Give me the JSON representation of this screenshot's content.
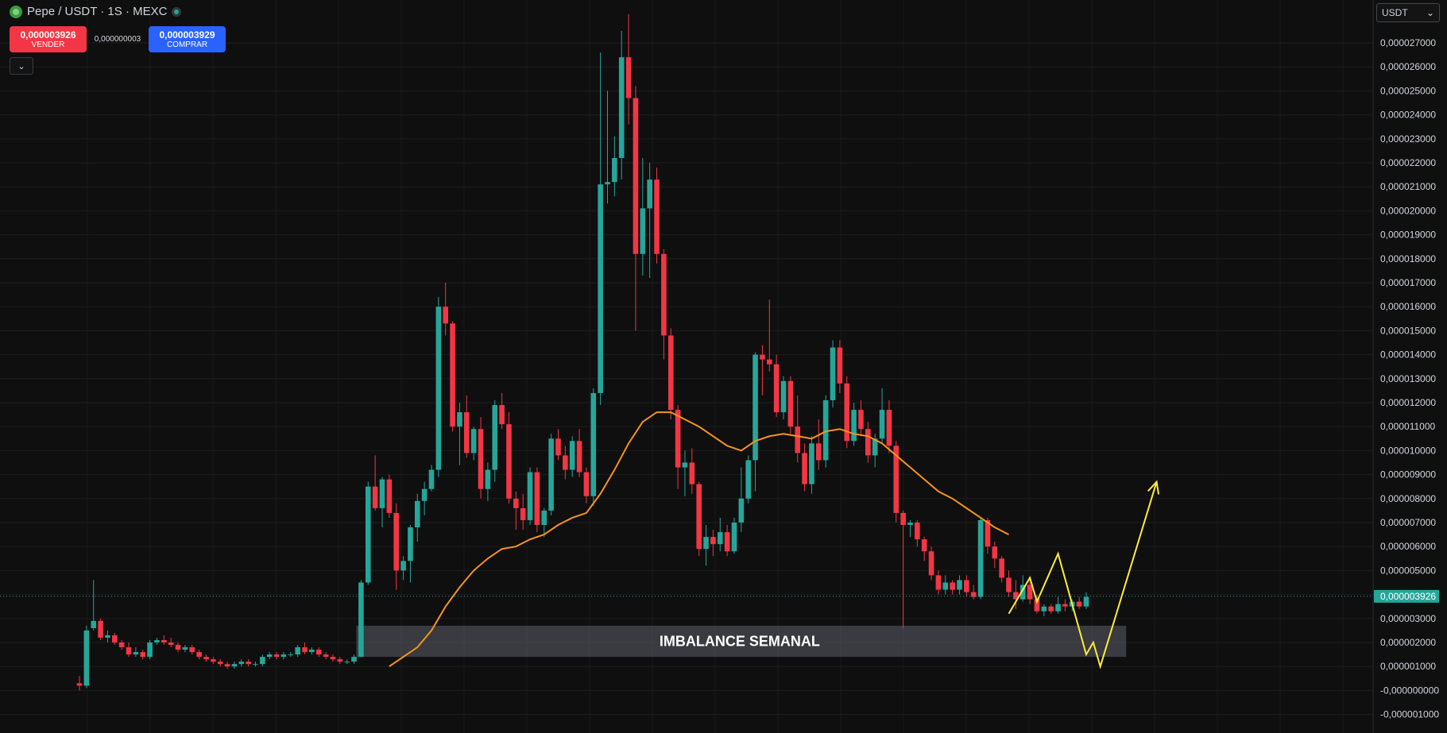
{
  "header": {
    "symbol": "Pepe / USDT · 1S · MEXC"
  },
  "trade": {
    "sell_price": "0,000003926",
    "sell_label": "VENDER",
    "spread": "0,000000003",
    "buy_price": "0,000003929",
    "buy_label": "COMPRAR"
  },
  "currency": "USDT",
  "icons": {
    "coin": "pepe-coin-icon",
    "status": "market-open-dot-icon",
    "collapse": "chevron-down-icon",
    "currency_caret": "caret-down-icon"
  },
  "colors": {
    "up": "#26a69a",
    "down": "#f23645",
    "ma": "#f7931e",
    "projection": "#ffeb3b",
    "background": "#0f0f0f",
    "zone": "#5d606b"
  },
  "chart_data": {
    "type": "candlestick",
    "ylim": [
      -1e-06,
      2.75e-05
    ],
    "y_ticks": [
      "0,000027000",
      "0,000026000",
      "0,000025000",
      "0,000024000",
      "0,000023000",
      "0,000022000",
      "0,000021000",
      "0,000020000",
      "0,000019000",
      "0,000018000",
      "0,000017000",
      "0,000016000",
      "0,000015000",
      "0,000014000",
      "0,000013000",
      "0,000012000",
      "0,000011000",
      "0,000010000",
      "0,000009000",
      "0,000008000",
      "0,000007000",
      "0,000006000",
      "0,000005000",
      "0,000004000",
      "0,000003000",
      "0,000002000",
      "0,000001000",
      "-0,000000000",
      "-0,000001000"
    ],
    "y_tick_values": [
      27,
      26,
      25,
      24,
      23,
      22,
      21,
      20,
      19,
      18,
      17,
      16,
      15,
      14,
      13,
      12,
      11,
      10,
      9,
      8,
      7,
      6,
      5,
      4,
      3,
      2,
      1,
      0,
      -1
    ],
    "y_tick_unit": 1e-06,
    "last_price": {
      "label": "0,000003926",
      "value": 3.926e-06
    },
    "candles_unit": 1e-06,
    "candles": [
      [
        0.3,
        0.6,
        0.0,
        0.2
      ],
      [
        0.2,
        2.7,
        0.1,
        2.5
      ],
      [
        2.6,
        4.6,
        2.5,
        2.9
      ],
      [
        2.9,
        3.0,
        2.1,
        2.2
      ],
      [
        2.2,
        2.5,
        2.0,
        2.3
      ],
      [
        2.3,
        2.4,
        1.9,
        2.0
      ],
      [
        2.0,
        2.1,
        1.7,
        1.8
      ],
      [
        1.8,
        2.0,
        1.4,
        1.5
      ],
      [
        1.5,
        1.8,
        1.4,
        1.6
      ],
      [
        1.6,
        1.7,
        1.3,
        1.4
      ],
      [
        1.4,
        2.1,
        1.3,
        2.0
      ],
      [
        2.0,
        2.2,
        1.9,
        2.1
      ],
      [
        2.1,
        2.3,
        1.9,
        2.0
      ],
      [
        2.0,
        2.2,
        1.8,
        1.9
      ],
      [
        1.9,
        2.0,
        1.6,
        1.7
      ],
      [
        1.7,
        1.9,
        1.6,
        1.8
      ],
      [
        1.8,
        1.9,
        1.5,
        1.6
      ],
      [
        1.6,
        1.7,
        1.3,
        1.4
      ],
      [
        1.4,
        1.5,
        1.2,
        1.3
      ],
      [
        1.3,
        1.4,
        1.1,
        1.2
      ],
      [
        1.2,
        1.3,
        1.0,
        1.1
      ],
      [
        1.1,
        1.2,
        0.9,
        1.0
      ],
      [
        1.0,
        1.2,
        0.9,
        1.1
      ],
      [
        1.1,
        1.3,
        1.0,
        1.2
      ],
      [
        1.2,
        1.3,
        1.0,
        1.1
      ],
      [
        1.1,
        1.2,
        1.0,
        1.1
      ],
      [
        1.1,
        1.5,
        1.0,
        1.4
      ],
      [
        1.4,
        1.6,
        1.3,
        1.5
      ],
      [
        1.5,
        1.6,
        1.3,
        1.4
      ],
      [
        1.4,
        1.6,
        1.3,
        1.5
      ],
      [
        1.5,
        1.6,
        1.4,
        1.5
      ],
      [
        1.5,
        1.9,
        1.4,
        1.8
      ],
      [
        1.8,
        2.0,
        1.5,
        1.6
      ],
      [
        1.6,
        1.8,
        1.5,
        1.7
      ],
      [
        1.7,
        1.8,
        1.4,
        1.5
      ],
      [
        1.5,
        1.6,
        1.3,
        1.4
      ],
      [
        1.4,
        1.5,
        1.2,
        1.3
      ],
      [
        1.3,
        1.4,
        1.1,
        1.2
      ],
      [
        1.2,
        1.3,
        1.1,
        1.2
      ],
      [
        1.2,
        1.5,
        1.1,
        1.4
      ],
      [
        1.4,
        4.6,
        1.4,
        4.5
      ],
      [
        4.5,
        8.7,
        4.4,
        8.5
      ],
      [
        8.5,
        9.8,
        7.5,
        7.6
      ],
      [
        7.6,
        8.9,
        6.8,
        8.8
      ],
      [
        8.8,
        9.0,
        7.2,
        7.4
      ],
      [
        7.4,
        7.8,
        4.2,
        5.0
      ],
      [
        5.0,
        5.6,
        4.6,
        5.4
      ],
      [
        5.4,
        6.9,
        4.5,
        6.8
      ],
      [
        6.8,
        8.2,
        6.2,
        7.9
      ],
      [
        7.9,
        8.7,
        7.3,
        8.4
      ],
      [
        8.4,
        9.4,
        8.3,
        9.2
      ],
      [
        9.2,
        16.4,
        8.9,
        16.0
      ],
      [
        16.0,
        17.0,
        14.8,
        15.3
      ],
      [
        15.3,
        15.4,
        10.8,
        11.0
      ],
      [
        11.0,
        12.0,
        9.4,
        11.6
      ],
      [
        11.6,
        12.3,
        9.7,
        9.9
      ],
      [
        9.9,
        11.0,
        9.6,
        10.9
      ],
      [
        10.9,
        11.4,
        8.0,
        8.4
      ],
      [
        8.4,
        9.5,
        7.9,
        9.2
      ],
      [
        9.2,
        12.1,
        8.7,
        11.9
      ],
      [
        11.9,
        12.4,
        10.9,
        11.1
      ],
      [
        11.1,
        11.6,
        7.8,
        8.0
      ],
      [
        8.0,
        8.3,
        6.7,
        7.6
      ],
      [
        7.6,
        8.2,
        6.7,
        7.1
      ],
      [
        7.1,
        9.3,
        6.9,
        9.1
      ],
      [
        9.1,
        9.3,
        6.6,
        6.9
      ],
      [
        6.9,
        7.6,
        6.4,
        7.5
      ],
      [
        7.5,
        10.7,
        7.3,
        10.5
      ],
      [
        10.5,
        10.9,
        9.6,
        9.8
      ],
      [
        9.8,
        10.2,
        8.8,
        9.2
      ],
      [
        9.2,
        10.6,
        8.9,
        10.4
      ],
      [
        10.4,
        10.9,
        8.9,
        9.1
      ],
      [
        9.1,
        9.3,
        7.8,
        8.1
      ],
      [
        8.1,
        12.6,
        7.7,
        12.4
      ],
      [
        12.4,
        26.6,
        11.9,
        21.1
      ],
      [
        21.1,
        25.0,
        20.3,
        21.2
      ],
      [
        21.2,
        23.1,
        20.6,
        22.2
      ],
      [
        22.2,
        27.5,
        21.3,
        26.4
      ],
      [
        26.4,
        28.2,
        23.6,
        24.7
      ],
      [
        24.7,
        25.2,
        15.0,
        18.2
      ],
      [
        18.2,
        22.2,
        17.3,
        20.1
      ],
      [
        20.1,
        22.0,
        17.2,
        21.3
      ],
      [
        21.3,
        21.8,
        17.8,
        18.2
      ],
      [
        18.2,
        18.4,
        13.8,
        14.8
      ],
      [
        14.8,
        15.1,
        11.3,
        11.7
      ],
      [
        11.7,
        11.9,
        8.4,
        9.3
      ],
      [
        9.3,
        10.0,
        8.1,
        9.5
      ],
      [
        9.5,
        10.1,
        8.2,
        8.6
      ],
      [
        8.6,
        8.7,
        5.6,
        5.9
      ],
      [
        5.9,
        6.9,
        5.2,
        6.4
      ],
      [
        6.4,
        6.7,
        5.6,
        6.1
      ],
      [
        6.1,
        7.2,
        5.8,
        6.6
      ],
      [
        6.6,
        6.9,
        5.6,
        5.8
      ],
      [
        5.8,
        7.2,
        5.7,
        7.0
      ],
      [
        7.0,
        9.3,
        6.6,
        8.0
      ],
      [
        8.0,
        9.8,
        7.8,
        9.6
      ],
      [
        9.6,
        14.1,
        8.3,
        14.0
      ],
      [
        14.0,
        14.4,
        12.3,
        13.8
      ],
      [
        13.8,
        16.3,
        13.3,
        13.6
      ],
      [
        13.6,
        14.0,
        11.4,
        11.6
      ],
      [
        11.6,
        13.1,
        11.3,
        12.9
      ],
      [
        12.9,
        13.1,
        10.7,
        11.0
      ],
      [
        11.0,
        12.3,
        9.5,
        9.9
      ],
      [
        9.9,
        10.3,
        8.3,
        8.6
      ],
      [
        8.6,
        10.6,
        8.2,
        10.3
      ],
      [
        10.3,
        11.3,
        9.2,
        9.6
      ],
      [
        9.6,
        12.3,
        9.3,
        12.1
      ],
      [
        12.1,
        14.6,
        11.8,
        14.3
      ],
      [
        14.3,
        14.6,
        12.4,
        12.8
      ],
      [
        12.8,
        13.1,
        10.1,
        10.4
      ],
      [
        10.4,
        12.0,
        10.2,
        11.7
      ],
      [
        11.7,
        12.1,
        10.6,
        10.9
      ],
      [
        10.9,
        11.2,
        9.5,
        9.8
      ],
      [
        9.8,
        10.7,
        9.3,
        10.5
      ],
      [
        10.5,
        12.6,
        10.3,
        11.7
      ],
      [
        11.7,
        12.1,
        9.9,
        10.2
      ],
      [
        10.2,
        10.4,
        7.0,
        7.4
      ],
      [
        7.4,
        7.5,
        2.6,
        6.9
      ],
      [
        6.9,
        7.1,
        6.4,
        7.0
      ],
      [
        7.0,
        7.1,
        6.0,
        6.3
      ],
      [
        6.3,
        6.4,
        5.4,
        5.8
      ],
      [
        5.8,
        6.0,
        4.6,
        4.8
      ],
      [
        4.8,
        5.0,
        4.0,
        4.2
      ],
      [
        4.2,
        4.8,
        4.0,
        4.5
      ],
      [
        4.5,
        4.6,
        4.0,
        4.2
      ],
      [
        4.2,
        4.8,
        4.0,
        4.6
      ],
      [
        4.6,
        4.8,
        3.9,
        4.1
      ],
      [
        4.1,
        4.4,
        3.8,
        3.9
      ],
      [
        3.9,
        7.2,
        3.8,
        7.1
      ],
      [
        7.1,
        7.2,
        5.7,
        6.0
      ],
      [
        6.0,
        6.2,
        5.1,
        5.5
      ],
      [
        5.5,
        5.6,
        4.5,
        4.7
      ],
      [
        4.7,
        5.0,
        3.9,
        4.1
      ],
      [
        4.1,
        4.6,
        3.4,
        3.8
      ],
      [
        3.8,
        4.8,
        3.7,
        4.4
      ],
      [
        4.4,
        4.6,
        3.6,
        3.8
      ],
      [
        3.8,
        4.0,
        3.2,
        3.3
      ],
      [
        3.3,
        3.6,
        3.1,
        3.5
      ],
      [
        3.5,
        3.6,
        3.2,
        3.3
      ],
      [
        3.3,
        3.9,
        3.2,
        3.6
      ],
      [
        3.6,
        3.8,
        3.3,
        3.5
      ],
      [
        3.5,
        3.8,
        3.3,
        3.7
      ],
      [
        3.7,
        3.9,
        3.4,
        3.5
      ],
      [
        3.5,
        4.1,
        3.4,
        3.9
      ]
    ],
    "moving_average": [
      [
        44,
        1.0
      ],
      [
        46,
        1.4
      ],
      [
        48,
        1.8
      ],
      [
        50,
        2.5
      ],
      [
        52,
        3.5
      ],
      [
        54,
        4.3
      ],
      [
        56,
        5.0
      ],
      [
        58,
        5.5
      ],
      [
        60,
        5.9
      ],
      [
        62,
        6.0
      ],
      [
        64,
        6.3
      ],
      [
        66,
        6.5
      ],
      [
        68,
        6.9
      ],
      [
        70,
        7.2
      ],
      [
        72,
        7.4
      ],
      [
        74,
        8.2
      ],
      [
        76,
        9.2
      ],
      [
        78,
        10.3
      ],
      [
        80,
        11.2
      ],
      [
        82,
        11.6
      ],
      [
        84,
        11.6
      ],
      [
        86,
        11.3
      ],
      [
        88,
        11.0
      ],
      [
        90,
        10.6
      ],
      [
        92,
        10.2
      ],
      [
        94,
        10.0
      ],
      [
        96,
        10.4
      ],
      [
        98,
        10.6
      ],
      [
        100,
        10.7
      ],
      [
        102,
        10.6
      ],
      [
        104,
        10.5
      ],
      [
        106,
        10.8
      ],
      [
        108,
        10.9
      ],
      [
        110,
        10.7
      ],
      [
        112,
        10.6
      ],
      [
        114,
        10.3
      ],
      [
        116,
        9.8
      ],
      [
        118,
        9.3
      ],
      [
        120,
        8.8
      ],
      [
        122,
        8.3
      ],
      [
        124,
        8.0
      ],
      [
        126,
        7.6
      ],
      [
        128,
        7.2
      ],
      [
        130,
        6.8
      ],
      [
        132,
        6.5
      ]
    ],
    "zone": {
      "label": "IMBALANCE SEMANAL",
      "from_value": 1.4e-06,
      "to_value": 2.7e-06,
      "from_index": 40,
      "to_index": 148
    },
    "projection": [
      [
        132,
        3.2e-06
      ],
      [
        135,
        4.7e-06
      ],
      [
        136,
        3.7e-06
      ],
      [
        139,
        5.7e-06
      ],
      [
        143,
        1.5e-06
      ],
      [
        144,
        2e-06
      ],
      [
        145,
        1e-06
      ],
      [
        153,
        8.7e-06
      ]
    ]
  }
}
